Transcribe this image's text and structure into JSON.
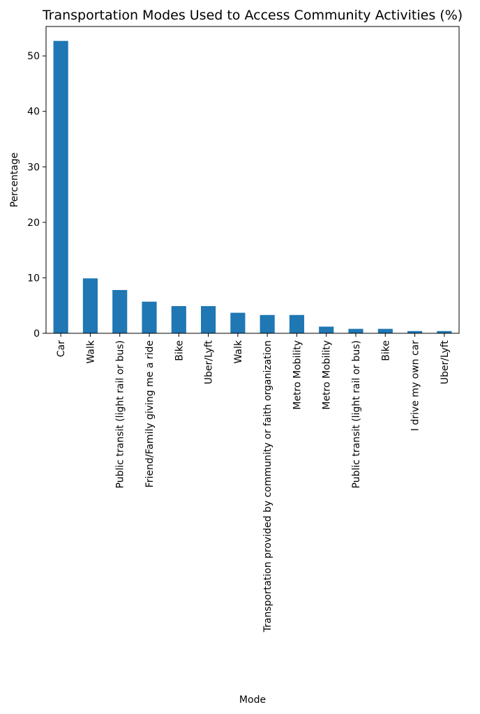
{
  "chart_data": {
    "type": "bar",
    "title": "Transportation Modes Used to Access Community Activities (%)",
    "xlabel": "Mode",
    "ylabel": "Percentage",
    "ylim": [
      0,
      55.3
    ],
    "yticks": [
      0,
      10,
      20,
      30,
      40,
      50
    ],
    "grid": false,
    "categories": [
      "Car",
      "Walk",
      "Public transit (light rail or bus)",
      "Friend/Family giving me a ride",
      "Bike",
      "Uber/Lyft",
      "Walk",
      "Transportation provided by community or faith organization",
      "Metro Mobility",
      "Metro Mobility",
      "Public transit (light rail or bus)",
      "Bike",
      "I drive my own car",
      "Uber/Lyft"
    ],
    "values": [
      52.7,
      9.9,
      7.8,
      5.7,
      4.9,
      4.9,
      3.7,
      3.3,
      3.3,
      1.2,
      0.8,
      0.8,
      0.4,
      0.4
    ],
    "bar_color": "#1f77b4"
  }
}
